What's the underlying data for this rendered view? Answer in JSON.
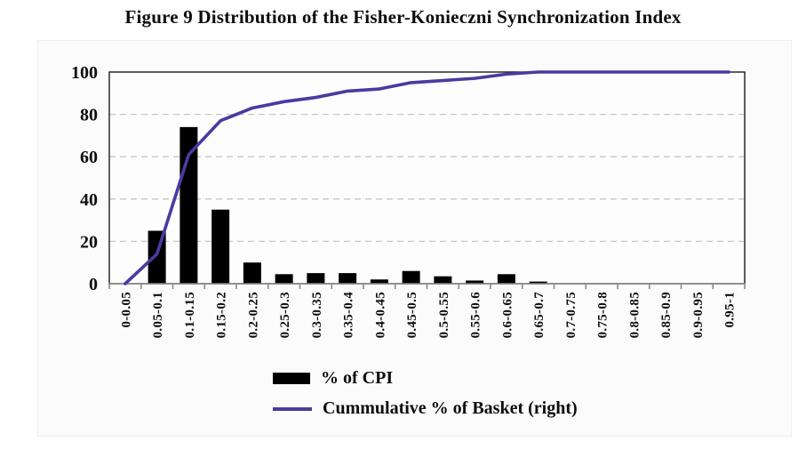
{
  "title": "Figure 9 Distribution of the Fisher-Konieczni Synchronization Index",
  "legend": {
    "bars_label": "% of CPI",
    "line_label": "Cummulative % of Basket (right)"
  },
  "colors": {
    "bar": "#000000",
    "line": "#4a3aa0",
    "grid": "#c6c6c6",
    "frame": "#1a1a1a",
    "axis": "#8a8a8a",
    "plot_bg": "#fdfdfd",
    "panel_bg": "#fbfbfb",
    "text": "#0d0d0d"
  },
  "chart_data": {
    "type": "bar",
    "subtype": "combo-bar-line (histogram with cumulative line)",
    "title": "Figure 9 Distribution of the Fisher-Konieczni Synchronization Index",
    "categories": [
      "0-0.05",
      "0.05-0.1",
      "0.1-0.15",
      "0.15-0.2",
      "0.2-0.25",
      "0.25-0.3",
      "0.3-0.35",
      "0.35-0.4",
      "0.4-0.45",
      "0.45-0.5",
      "0.5-0.55",
      "0.55-0.6",
      "0.6-0.65",
      "0.65-0.7",
      "0.7-0.75",
      "0.75-0.8",
      "0.8-0.85",
      "0.85-0.9",
      "0.9-0.95",
      "0.95-1"
    ],
    "series": [
      {
        "name": "% of CPI",
        "type": "bar",
        "values": [
          0,
          25,
          74,
          35,
          10,
          4.5,
          5,
          5,
          2,
          6,
          3.5,
          1.5,
          4.5,
          1,
          0,
          0,
          0,
          0,
          0,
          0
        ]
      },
      {
        "name": "Cummulative % of Basket (right)",
        "type": "line",
        "values": [
          0,
          14,
          61,
          77,
          83,
          86,
          88,
          91,
          92,
          95,
          96,
          97,
          99,
          100,
          100,
          100,
          100,
          100,
          100,
          100
        ]
      }
    ],
    "xlabel": "",
    "ylabel": "",
    "ylim": [
      0,
      100
    ],
    "yticks": [
      0,
      20,
      40,
      60,
      80,
      100
    ],
    "grid": "horizontal dashed gridlines at 20, 40, 60, 80",
    "legend_position": "bottom"
  }
}
